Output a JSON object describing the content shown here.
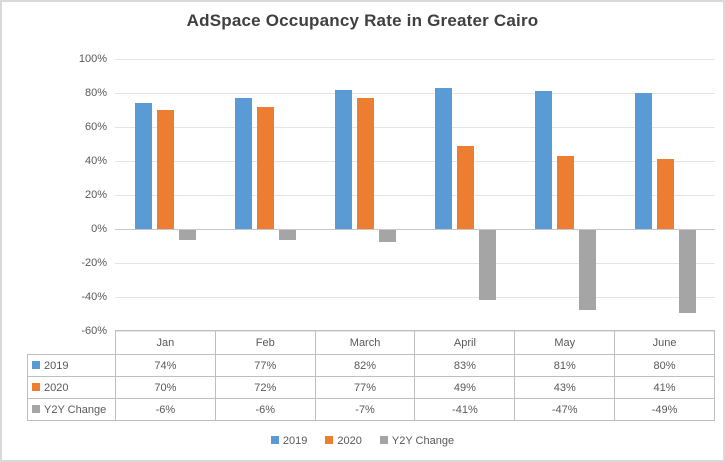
{
  "frame": {
    "background": "#ffffff",
    "border_color": "#d9d9d9"
  },
  "chart_data": {
    "type": "bar",
    "title": "AdSpace Occupancy Rate in Greater Cairo",
    "title_color": "#404040",
    "categories": [
      "Jan",
      "Feb",
      "March",
      "April",
      "May",
      "June"
    ],
    "series": [
      {
        "name": "2019",
        "color": "#5B9BD5",
        "values": [
          74,
          77,
          82,
          83,
          81,
          80
        ]
      },
      {
        "name": "2020",
        "color": "#ED7D31",
        "values": [
          70,
          72,
          77,
          49,
          43,
          41
        ]
      },
      {
        "name": "Y2Y Change",
        "color": "#A5A5A5",
        "values": [
          -6,
          -6,
          -7,
          -41,
          -47,
          -49
        ]
      }
    ],
    "value_suffix": "%",
    "y_axis": {
      "min": -60,
      "max": 100,
      "step": 20,
      "tick_labels": [
        "100%",
        "80%",
        "60%",
        "40%",
        "20%",
        "0%",
        "-20%",
        "-40%",
        "-60%"
      ]
    },
    "axis_text_color": "#595959",
    "grid": true,
    "gridline_color": "#e4e4e4",
    "zero_line_color": "#c6c6c6",
    "legend_position": "bottom",
    "legend": [
      "2019",
      "2020",
      "Y2Y Change"
    ],
    "data_table": {
      "shown": true,
      "border_color": "#bfbfbf",
      "text_color": "#595959"
    }
  }
}
